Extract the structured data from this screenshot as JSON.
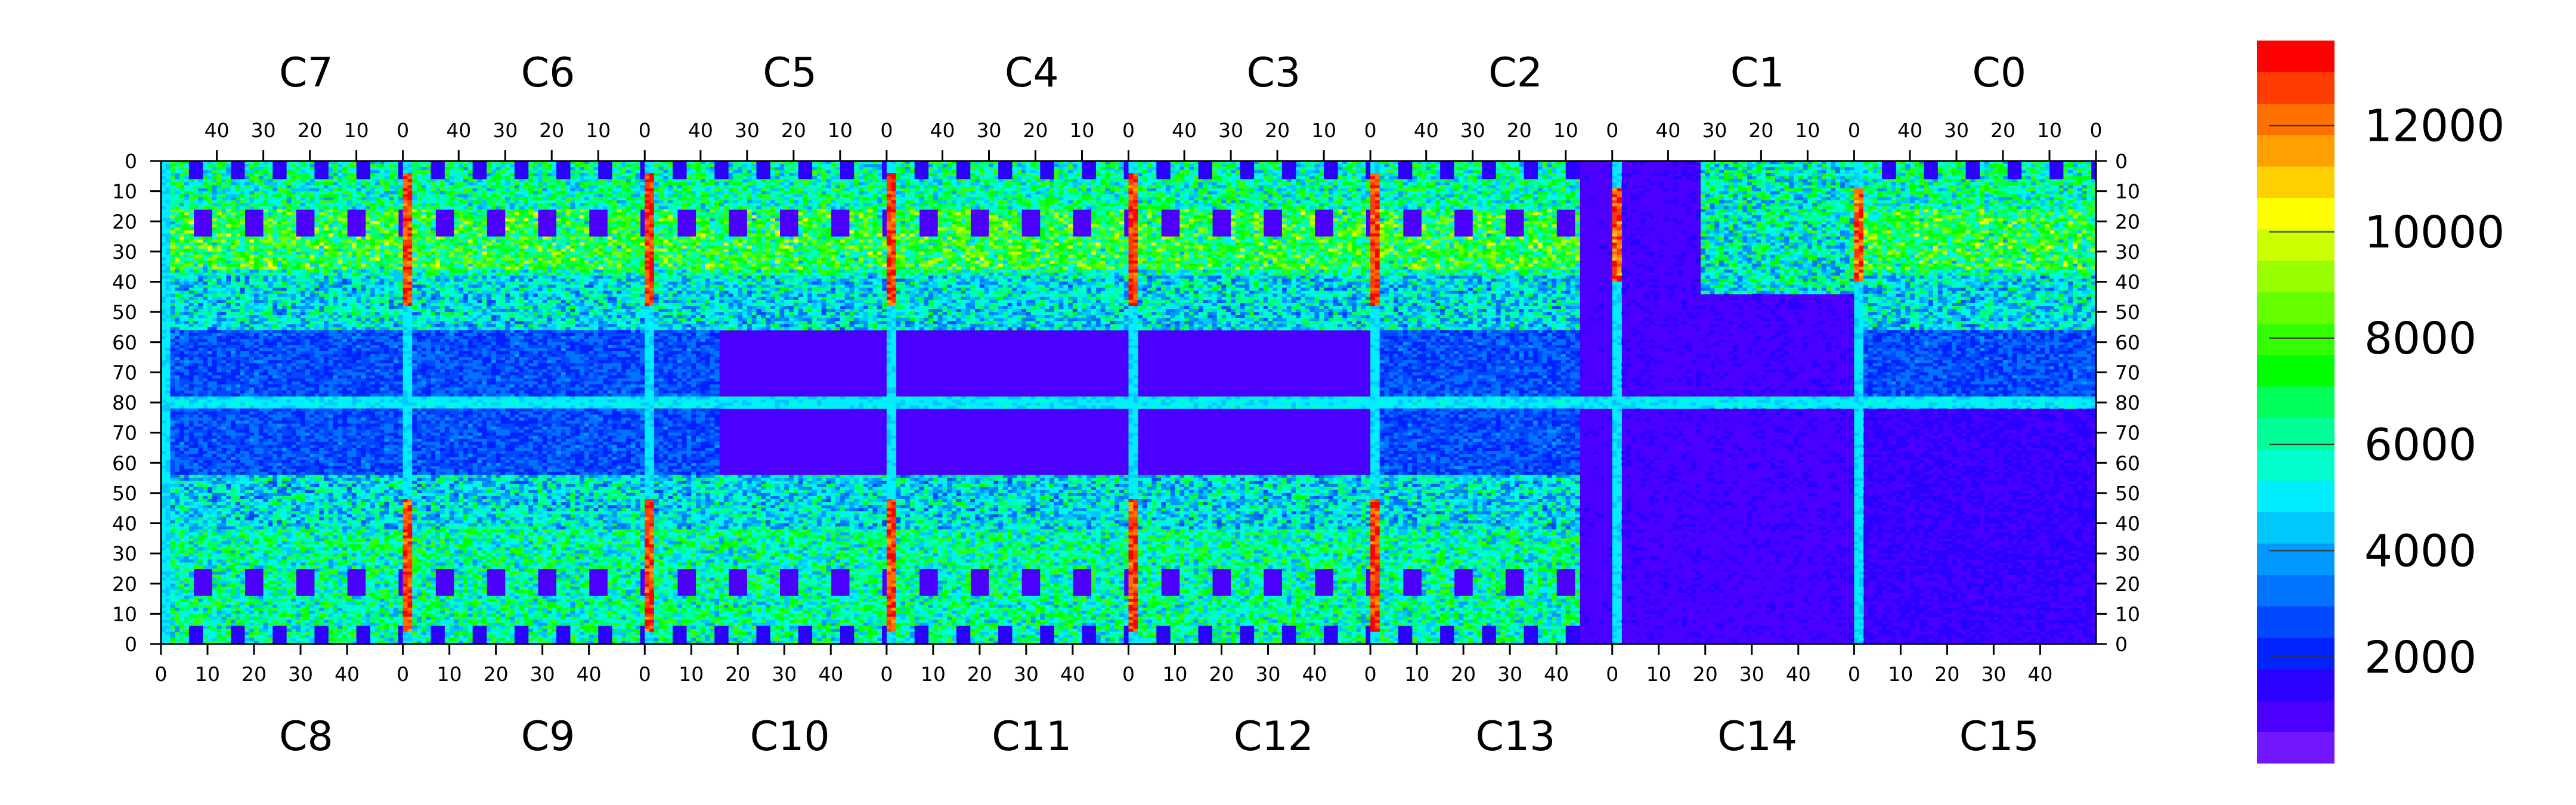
{
  "chart_data": {
    "type": "heatmap",
    "title": "",
    "xlabel": "",
    "ylabel": "",
    "top_chips": [
      "C7",
      "C6",
      "C5",
      "C4",
      "C3",
      "C2",
      "C1",
      "C0"
    ],
    "bottom_chips": [
      "C8",
      "C9",
      "C10",
      "C11",
      "C12",
      "C13",
      "C14",
      "C15"
    ],
    "top_x_tick_labels": [
      "40",
      "30",
      "20",
      "10",
      "0"
    ],
    "bottom_x_tick_labels": [
      "0",
      "10",
      "20",
      "30",
      "40"
    ],
    "columns_per_chip": 52,
    "rows_per_half": 80,
    "y_tick_labels": [
      "0",
      "10",
      "20",
      "30",
      "40",
      "50",
      "60",
      "70",
      "80",
      "70",
      "60",
      "50",
      "40",
      "30",
      "20",
      "10",
      "0"
    ],
    "colorbar": {
      "min": 0,
      "max": 13600,
      "ticks": [
        "2000",
        "4000",
        "6000",
        "8000",
        "10000",
        "12000"
      ],
      "colors": [
        "#7216ff",
        "#4b00ff",
        "#2a00ff",
        "#0022ff",
        "#0049ff",
        "#0074ff",
        "#0099ff",
        "#00c8ff",
        "#00eeff",
        "#00ffcc",
        "#00ff97",
        "#00ff5a",
        "#00ff00",
        "#33ff00",
        "#66ff00",
        "#99ff00",
        "#ccff00",
        "#ffff00",
        "#ffd000",
        "#ffa000",
        "#ff7000",
        "#ff3c00",
        "#ff0000"
      ]
    },
    "summary_levels": {
      "background": 1000,
      "top_upper_band": 6000,
      "top_lower_band": 5000,
      "bottom_upper_band": 5000,
      "bottom_lower_band": 6000,
      "hot_columns": 13000,
      "row_80_line": 5000
    }
  }
}
